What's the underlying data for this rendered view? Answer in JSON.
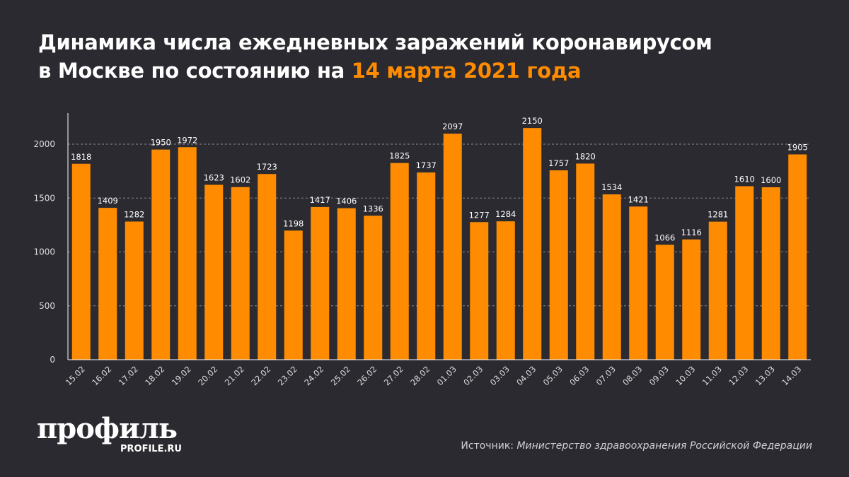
{
  "title": {
    "line1": "Динамика числа ежедневных заражений коронавирусом",
    "line2_prefix": "в Москве по состоянию на ",
    "line2_highlight": "14 марта 2021 года"
  },
  "colors": {
    "bar": "#ff8c00",
    "background": "#2a2a30",
    "highlight": "#ff8c00"
  },
  "logo": {
    "text": "профиль",
    "sub": "PROFILE.RU"
  },
  "source": {
    "label": "Источник: ",
    "value": "Министерство здравоохранения Российской Федерации"
  },
  "chart_data": {
    "type": "bar",
    "categories": [
      "15.02",
      "16.02",
      "17.02",
      "18.02",
      "19.02",
      "20.02",
      "21.02",
      "22.02",
      "23.02",
      "24.02",
      "25.02",
      "26.02",
      "27.02",
      "28.02",
      "01.03",
      "02.03",
      "03.03",
      "04.03",
      "05.03",
      "06.03",
      "07.03",
      "08.03",
      "09.03",
      "10.03",
      "11.03",
      "12.03",
      "13.03",
      "14.03"
    ],
    "values": [
      1818,
      1409,
      1282,
      1950,
      1972,
      1623,
      1602,
      1723,
      1198,
      1417,
      1406,
      1336,
      1825,
      1737,
      2097,
      1277,
      1284,
      2150,
      1757,
      1820,
      1534,
      1421,
      1066,
      1116,
      1281,
      1610,
      1600,
      1905
    ],
    "yticks": [
      0,
      500,
      1000,
      1500,
      2000
    ],
    "ylim": [
      0,
      2300
    ],
    "grid": true,
    "data_labels": true
  }
}
